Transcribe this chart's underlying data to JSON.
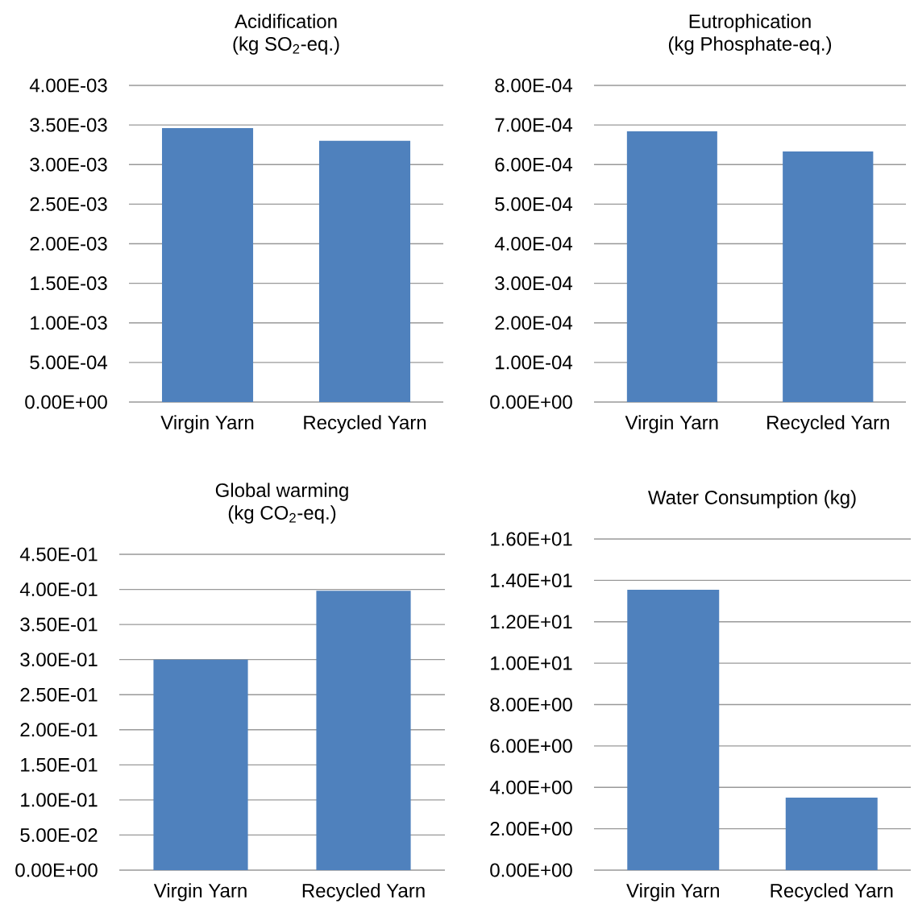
{
  "chart_data": [
    {
      "type": "bar",
      "title": "Acidification",
      "subtitle": "(kg SO$_{2}$-eq.)",
      "categories": [
        "Virgin Yarn",
        "Recycled Yarn"
      ],
      "values": [
        0.00346,
        0.0033
      ],
      "color": "#4f81bd",
      "ylim": [
        0,
        0.004
      ],
      "yticks": [
        {
          "value": 0,
          "label": "0.00E+00"
        },
        {
          "value": 0.0005,
          "label": "5.00E-04"
        },
        {
          "value": 0.001,
          "label": "1.00E-03"
        },
        {
          "value": 0.0015,
          "label": "1.50E-03"
        },
        {
          "value": 0.002,
          "label": "2.00E-03"
        },
        {
          "value": 0.0025,
          "label": "2.50E-03"
        },
        {
          "value": 0.003,
          "label": "3.00E-03"
        },
        {
          "value": 0.0035,
          "label": "3.50E-03"
        },
        {
          "value": 0.004,
          "label": "4.00E-03"
        }
      ],
      "grid": "y"
    },
    {
      "type": "bar",
      "title": "Eutrophication",
      "subtitle": "(kg Phosphate-eq.)",
      "categories": [
        "Virgin Yarn",
        "Recycled Yarn"
      ],
      "values": [
        0.000684,
        0.000633
      ],
      "color": "#4f81bd",
      "ylim": [
        0,
        0.0008
      ],
      "yticks": [
        {
          "value": 0,
          "label": "0.00E+00"
        },
        {
          "value": 0.0001,
          "label": "1.00E-04"
        },
        {
          "value": 0.0002,
          "label": "2.00E-04"
        },
        {
          "value": 0.0003,
          "label": "3.00E-04"
        },
        {
          "value": 0.0004,
          "label": "4.00E-04"
        },
        {
          "value": 0.0005,
          "label": "5.00E-04"
        },
        {
          "value": 0.0006,
          "label": "6.00E-04"
        },
        {
          "value": 0.0007,
          "label": "7.00E-04"
        },
        {
          "value": 0.0008,
          "label": "8.00E-04"
        }
      ],
      "grid": "y"
    },
    {
      "type": "bar",
      "title": "Global warming",
      "subtitle": "(kg CO$_{2}$-eq.)",
      "categories": [
        "Virgin Yarn",
        "Recycled Yarn"
      ],
      "values": [
        0.3,
        0.398
      ],
      "color": "#4f81bd",
      "ylim": [
        0,
        0.45
      ],
      "yticks": [
        {
          "value": 0,
          "label": "0.00E+00"
        },
        {
          "value": 0.05,
          "label": "5.00E-02"
        },
        {
          "value": 0.1,
          "label": "1.00E-01"
        },
        {
          "value": 0.15,
          "label": "1.50E-01"
        },
        {
          "value": 0.2,
          "label": "2.00E-01"
        },
        {
          "value": 0.25,
          "label": "2.50E-01"
        },
        {
          "value": 0.3,
          "label": "3.00E-01"
        },
        {
          "value": 0.35,
          "label": "3.50E-01"
        },
        {
          "value": 0.4,
          "label": "4.00E-01"
        },
        {
          "value": 0.45,
          "label": "4.50E-01"
        }
      ],
      "grid": "y"
    },
    {
      "type": "bar",
      "title": "Water Consumption (kg)",
      "categories": [
        "Virgin Yarn",
        "Recycled Yarn"
      ],
      "values": [
        13.55,
        3.5
      ],
      "color": "#4f81bd",
      "ylim": [
        0,
        16
      ],
      "yticks": [
        {
          "value": 0,
          "label": "0.00E+00"
        },
        {
          "value": 2,
          "label": "2.00E+00"
        },
        {
          "value": 4,
          "label": "4.00E+00"
        },
        {
          "value": 6,
          "label": "6.00E+00"
        },
        {
          "value": 8,
          "label": "8.00E+00"
        },
        {
          "value": 10,
          "label": "1.00E+01"
        },
        {
          "value": 12,
          "label": "1.20E+01"
        },
        {
          "value": 14,
          "label": "1.40E+01"
        },
        {
          "value": 16,
          "label": "1.60E+01"
        }
      ],
      "grid": "y"
    }
  ]
}
